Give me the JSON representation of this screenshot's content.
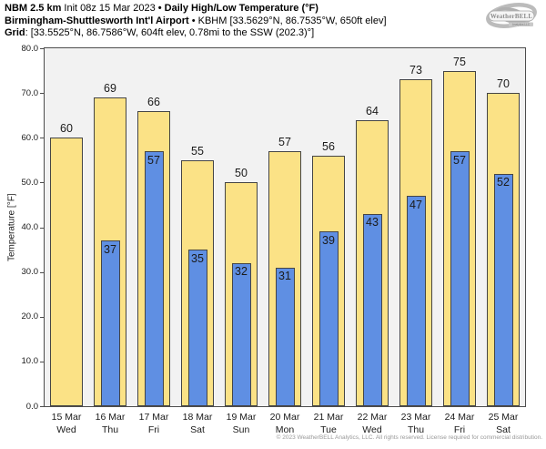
{
  "header": {
    "model": "NBM 2.5 km",
    "init": " Init 08z 15 Mar 2023 ",
    "product": "• Daily High/Low Temperature (°F)",
    "station_bold": "Birmingham-Shuttlesworth Int'l Airport",
    "station_rest": " • KBHM [33.5629°N, 86.7535°W, 650ft elev]",
    "grid_bold": "Grid",
    "grid_rest": ": [33.5525°N, 86.7586°W, 604ft elev, 0.78mi to the SSW (202.3)°]"
  },
  "logo": {
    "brand": "WeatherBELL",
    "sub": "Analytics LLC"
  },
  "chart_data": {
    "type": "bar",
    "title": "NBM 2.5 km Daily High/Low Temperature (°F) — Birmingham-Shuttlesworth Int'l Airport (KBHM)",
    "xlabel": "",
    "ylabel": "Temperature [°F]",
    "ylim": [
      0,
      80
    ],
    "yticks": [
      0,
      10,
      20,
      30,
      40,
      50,
      60,
      70,
      80
    ],
    "grid": false,
    "legend_position": "none",
    "plot_background": "#f2f2f2",
    "bar_border_color": "#454545",
    "axis_color": "#4d4d4d",
    "categories": [
      {
        "date": "15 Mar",
        "day": "Wed"
      },
      {
        "date": "16 Mar",
        "day": "Thu"
      },
      {
        "date": "17 Mar",
        "day": "Fri"
      },
      {
        "date": "18 Mar",
        "day": "Sat"
      },
      {
        "date": "19 Mar",
        "day": "Sun"
      },
      {
        "date": "20 Mar",
        "day": "Mon"
      },
      {
        "date": "21 Mar",
        "day": "Tue"
      },
      {
        "date": "22 Mar",
        "day": "Wed"
      },
      {
        "date": "23 Mar",
        "day": "Thu"
      },
      {
        "date": "24 Mar",
        "day": "Fri"
      },
      {
        "date": "25 Mar",
        "day": "Sat"
      }
    ],
    "series": [
      {
        "name": "High",
        "color": "#fbe286",
        "values": [
          60,
          69,
          66,
          55,
          50,
          57,
          56,
          64,
          73,
          75,
          70
        ]
      },
      {
        "name": "Low",
        "color": "#5f8fe3",
        "values": [
          null,
          37,
          57,
          35,
          32,
          31,
          39,
          43,
          47,
          57,
          52
        ]
      }
    ]
  },
  "footer": {
    "copyright": "© 2023 WeatherBELL Analytics, LLC. All rights reserved. License required for commercial distribution."
  }
}
